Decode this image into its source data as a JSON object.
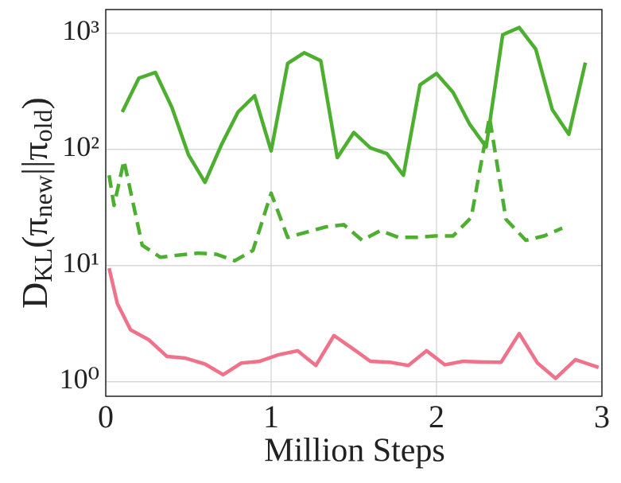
{
  "chart_data": {
    "type": "line",
    "xlabel": "Million Steps",
    "ylabel": [
      {
        "text": "D",
        "sub": false
      },
      {
        "text": "KL",
        "sub": true
      },
      {
        "text": "(π",
        "sub": false
      },
      {
        "text": "new",
        "sub": true
      },
      {
        "text": "||π",
        "sub": false
      },
      {
        "text": "old",
        "sub": true
      },
      {
        "text": ")",
        "sub": false
      }
    ],
    "xlim": [
      0,
      3
    ],
    "xticks": [
      0,
      1,
      2,
      3
    ],
    "ylim": [
      0.75,
      1600
    ],
    "ylog": true,
    "yticks": [
      {
        "value": 1,
        "label": "10⁰"
      },
      {
        "value": 10,
        "label": "10¹"
      },
      {
        "value": 100,
        "label": "10²"
      },
      {
        "value": 1000,
        "label": "10³"
      }
    ],
    "grid": true,
    "series": [
      {
        "color": "#f0718a",
        "dashed": false,
        "x": [
          0.02,
          0.07,
          0.15,
          0.26,
          0.37,
          0.48,
          0.6,
          0.71,
          0.82,
          0.93,
          1.04,
          1.16,
          1.27,
          1.38,
          1.5,
          1.6,
          1.72,
          1.83,
          1.94,
          2.05,
          2.16,
          2.27,
          2.39,
          2.5,
          2.61,
          2.72,
          2.84,
          2.98
        ],
        "values": [
          9.5,
          4.7,
          2.8,
          2.3,
          1.65,
          1.6,
          1.42,
          1.15,
          1.45,
          1.5,
          1.7,
          1.85,
          1.38,
          2.5,
          1.9,
          1.5,
          1.47,
          1.38,
          1.85,
          1.4,
          1.5,
          1.48,
          1.47,
          2.6,
          1.45,
          1.07,
          1.55,
          1.33
        ]
      },
      {
        "color": "#4daf2f",
        "dashed": false,
        "x": [
          0.1,
          0.2,
          0.3,
          0.4,
          0.5,
          0.6,
          0.7,
          0.8,
          0.9,
          1.0,
          1.1,
          1.2,
          1.3,
          1.4,
          1.5,
          1.6,
          1.7,
          1.8,
          1.9,
          2.0,
          2.1,
          2.2,
          2.3,
          2.4,
          2.5,
          2.6,
          2.7,
          2.8,
          2.9
        ],
        "values": [
          210,
          410,
          460,
          230,
          90,
          52,
          110,
          210,
          290,
          97,
          550,
          680,
          580,
          85,
          140,
          103,
          92,
          60,
          360,
          450,
          310,
          165,
          105,
          970,
          1120,
          730,
          220,
          135,
          560
        ]
      },
      {
        "color": "#4daf2f",
        "dashed": true,
        "x": [
          0.02,
          0.05,
          0.11,
          0.22,
          0.33,
          0.44,
          0.56,
          0.67,
          0.78,
          0.89,
          1.0,
          1.1,
          1.22,
          1.33,
          1.44,
          1.55,
          1.66,
          1.77,
          1.88,
          1.99,
          2.1,
          2.21,
          2.32,
          2.42,
          2.54,
          2.65,
          2.76
        ],
        "values": [
          60,
          33,
          80,
          15,
          11.8,
          12.3,
          12.8,
          12.5,
          11,
          13.5,
          42,
          17.5,
          19.5,
          21.5,
          22.5,
          16.5,
          20,
          17.5,
          17.5,
          18,
          18,
          26,
          190,
          25,
          16.5,
          18,
          21
        ]
      }
    ]
  }
}
